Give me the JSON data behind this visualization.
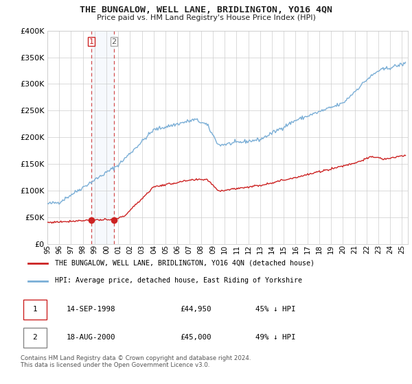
{
  "title": "THE BUNGALOW, WELL LANE, BRIDLINGTON, YO16 4QN",
  "subtitle": "Price paid vs. HM Land Registry's House Price Index (HPI)",
  "ylim": [
    0,
    400000
  ],
  "yticks": [
    0,
    50000,
    100000,
    150000,
    200000,
    250000,
    300000,
    350000,
    400000
  ],
  "ytick_labels": [
    "£0",
    "£50K",
    "£100K",
    "£150K",
    "£200K",
    "£250K",
    "£300K",
    "£350K",
    "£400K"
  ],
  "background_color": "#ffffff",
  "grid_color": "#cccccc",
  "hpi_color": "#7aaed6",
  "price_color": "#cc2222",
  "t1_x": 1998.71,
  "t1_y": 44950,
  "t2_x": 2000.62,
  "t2_y": 45000,
  "legend_entry1": "THE BUNGALOW, WELL LANE, BRIDLINGTON, YO16 4QN (detached house)",
  "legend_entry2": "HPI: Average price, detached house, East Riding of Yorkshire",
  "footnote": "Contains HM Land Registry data © Crown copyright and database right 2024.\nThis data is licensed under the Open Government Licence v3.0.",
  "xmin": 1995.0,
  "xmax": 2025.5,
  "xtick_years": [
    1995,
    1996,
    1997,
    1998,
    1999,
    2000,
    2001,
    2002,
    2003,
    2004,
    2005,
    2006,
    2007,
    2008,
    2009,
    2010,
    2011,
    2012,
    2013,
    2014,
    2015,
    2016,
    2017,
    2018,
    2019,
    2020,
    2021,
    2022,
    2023,
    2024,
    2025
  ]
}
